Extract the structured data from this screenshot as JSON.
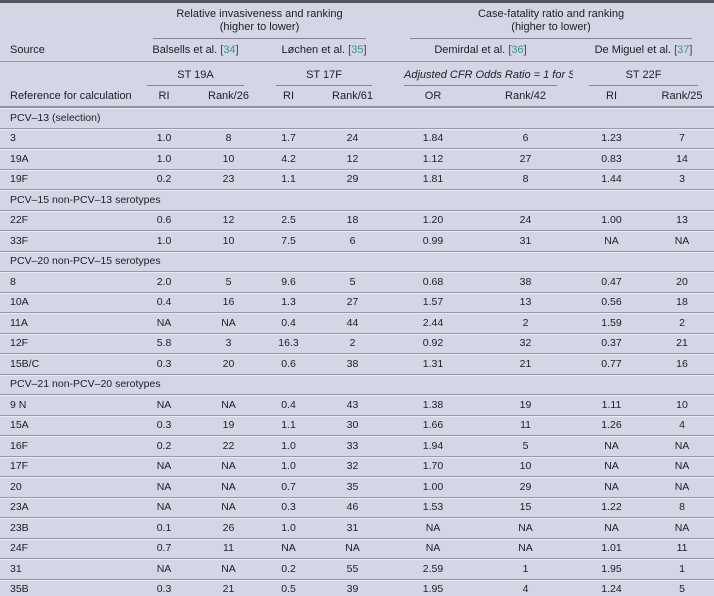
{
  "table": {
    "groups": [
      {
        "title": "Relative invasiveness and ranking",
        "subtitle": "(higher to lower)"
      },
      {
        "title": "Case-fatality ratio and ranking",
        "subtitle": "(higher to lower)"
      }
    ],
    "source_label": "Source",
    "reference_label": "Reference for calculations",
    "sources": [
      {
        "name": "Balsells et al.",
        "ref": "34"
      },
      {
        "name": "Løchen et al.",
        "ref": "35"
      },
      {
        "name": "Demirdal et al.",
        "ref": "36"
      },
      {
        "name": "De Miguel et al.",
        "ref": "37"
      }
    ],
    "st_labels": [
      "ST 19A",
      "ST 17F",
      "Adjusted CFR Odds Ratio = 1 for ST 20",
      "ST 22F"
    ],
    "metric_headers": [
      "RI",
      "Rank/26",
      "RI",
      "Rank/61",
      "OR",
      "Rank/42",
      "RI",
      "Rank/25"
    ],
    "sections": [
      {
        "label": "PCV–13 (selection)",
        "rows": [
          {
            "serotype": "3",
            "values": [
              "1.0",
              "8",
              "1.7",
              "24",
              "1.84",
              "6",
              "1.23",
              "7"
            ]
          },
          {
            "serotype": "19A",
            "values": [
              "1.0",
              "10",
              "4.2",
              "12",
              "1.12",
              "27",
              "0.83",
              "14"
            ]
          },
          {
            "serotype": "19F",
            "values": [
              "0.2",
              "23",
              "1.1",
              "29",
              "1.81",
              "8",
              "1.44",
              "3"
            ]
          }
        ]
      },
      {
        "label": "PCV–15 non-PCV–13 serotypes",
        "rows": [
          {
            "serotype": "22F",
            "values": [
              "0.6",
              "12",
              "2.5",
              "18",
              "1.20",
              "24",
              "1.00",
              "13"
            ]
          },
          {
            "serotype": "33F",
            "values": [
              "1.0",
              "10",
              "7.5",
              "6",
              "0.99",
              "31",
              "NA",
              "NA"
            ]
          }
        ]
      },
      {
        "label": "PCV–20 non-PCV–15 serotypes",
        "rows": [
          {
            "serotype": "8",
            "values": [
              "2.0",
              "5",
              "9.6",
              "5",
              "0.68",
              "38",
              "0.47",
              "20"
            ]
          },
          {
            "serotype": "10A",
            "values": [
              "0.4",
              "16",
              "1.3",
              "27",
              "1.57",
              "13",
              "0.56",
              "18"
            ]
          },
          {
            "serotype": "11A",
            "values": [
              "NA",
              "NA",
              "0.4",
              "44",
              "2.44",
              "2",
              "1.59",
              "2"
            ]
          },
          {
            "serotype": "12F",
            "values": [
              "5.8",
              "3",
              "16.3",
              "2",
              "0.92",
              "32",
              "0.37",
              "21"
            ]
          },
          {
            "serotype": "15B/C",
            "values": [
              "0.3",
              "20",
              "0.6",
              "38",
              "1.31",
              "21",
              "0.77",
              "16"
            ]
          }
        ]
      },
      {
        "label": "PCV–21 non-PCV–20 serotypes",
        "rows": [
          {
            "serotype": "9 N",
            "values": [
              "NA",
              "NA",
              "0.4",
              "43",
              "1.38",
              "19",
              "1.11",
              "10"
            ]
          },
          {
            "serotype": "15A",
            "values": [
              "0.3",
              "19",
              "1.1",
              "30",
              "1.66",
              "11",
              "1.26",
              "4"
            ]
          },
          {
            "serotype": "16F",
            "values": [
              "0.2",
              "22",
              "1.0",
              "33",
              "1.94",
              "5",
              "NA",
              "NA"
            ]
          },
          {
            "serotype": "17F",
            "values": [
              "NA",
              "NA",
              "1.0",
              "32",
              "1.70",
              "10",
              "NA",
              "NA"
            ]
          },
          {
            "serotype": "20",
            "values": [
              "NA",
              "NA",
              "0.7",
              "35",
              "1.00",
              "29",
              "NA",
              "NA"
            ]
          },
          {
            "serotype": "23A",
            "values": [
              "NA",
              "NA",
              "0.3",
              "46",
              "1.53",
              "15",
              "1.22",
              "8"
            ]
          },
          {
            "serotype": "23B",
            "values": [
              "0.1",
              "26",
              "1.0",
              "31",
              "NA",
              "NA",
              "NA",
              "NA"
            ]
          },
          {
            "serotype": "24F",
            "values": [
              "0.7",
              "11",
              "NA",
              "NA",
              "NA",
              "NA",
              "1.01",
              "11"
            ]
          },
          {
            "serotype": "31",
            "values": [
              "NA",
              "NA",
              "0.2",
              "55",
              "2.59",
              "1",
              "1.95",
              "1"
            ]
          },
          {
            "serotype": "35B",
            "values": [
              "0.3",
              "21",
              "0.5",
              "39",
              "1.95",
              "4",
              "1.24",
              "5"
            ]
          }
        ]
      }
    ]
  }
}
